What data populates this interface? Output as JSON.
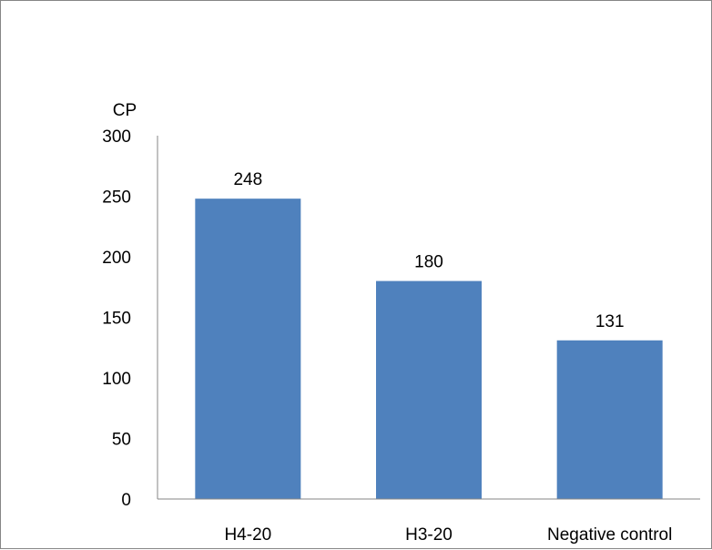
{
  "chart_data": {
    "type": "bar",
    "title": "",
    "ylabel": "CP",
    "xlabel": "",
    "categories": [
      "H4-20",
      "H3-20",
      "Negative control"
    ],
    "values": [
      248,
      180,
      131
    ],
    "data_labels": [
      "248",
      "180",
      "131"
    ],
    "ylim": [
      0,
      300
    ],
    "yticks": [
      0,
      50,
      100,
      150,
      200,
      250,
      300
    ],
    "ytick_labels": [
      "0",
      "50",
      "100",
      "150",
      "200",
      "250",
      "300"
    ],
    "bar_color": "#4F81BD",
    "grid": false,
    "legend": "none"
  }
}
